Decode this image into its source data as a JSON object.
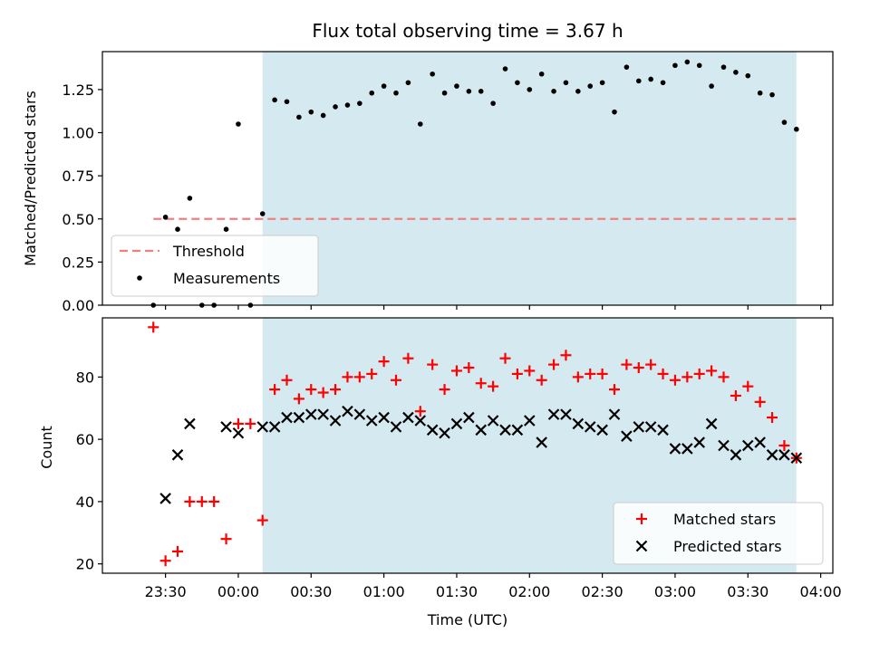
{
  "chart_data": [
    {
      "type": "scatter",
      "title": "Flux total observing time = 3.67 h",
      "xlabel": "",
      "ylabel": "Matched/Predicted stars",
      "ylim": [
        0,
        1.47
      ],
      "xlim": [
        "23:04",
        "04:05"
      ],
      "yticks": [
        "0.00",
        "0.25",
        "0.50",
        "0.75",
        "1.00",
        "1.25"
      ],
      "shaded_span": [
        "00:10",
        "03:50"
      ],
      "shade_color": "#d4eaf0",
      "threshold": {
        "name": "Threshold",
        "value": 0.5,
        "x_start": "23:25",
        "x_end": "03:50",
        "color": "#f08080"
      },
      "series": [
        {
          "name": "Measurements",
          "color": "#000000",
          "x": [
            "23:25",
            "23:30",
            "23:35",
            "23:40",
            "23:45",
            "23:50",
            "23:55",
            "00:00",
            "00:05",
            "00:10",
            "00:15",
            "00:20",
            "00:25",
            "00:30",
            "00:35",
            "00:40",
            "00:45",
            "00:50",
            "00:55",
            "01:00",
            "01:05",
            "01:10",
            "01:15",
            "01:20",
            "01:25",
            "01:30",
            "01:35",
            "01:40",
            "01:45",
            "01:50",
            "01:55",
            "02:00",
            "02:05",
            "02:10",
            "02:15",
            "02:20",
            "02:25",
            "02:30",
            "02:35",
            "02:40",
            "02:45",
            "02:50",
            "02:55",
            "03:00",
            "03:05",
            "03:10",
            "03:15",
            "03:20",
            "03:25",
            "03:30",
            "03:35",
            "03:40",
            "03:45",
            "03:50"
          ],
          "y": [
            0.0,
            0.51,
            0.44,
            0.62,
            0.0,
            0.0,
            0.44,
            1.05,
            0.0,
            0.53,
            1.19,
            1.18,
            1.09,
            1.12,
            1.1,
            1.15,
            1.16,
            1.17,
            1.23,
            1.27,
            1.23,
            1.29,
            1.05,
            1.34,
            1.23,
            1.27,
            1.24,
            1.24,
            1.17,
            1.37,
            1.29,
            1.25,
            1.34,
            1.24,
            1.29,
            1.24,
            1.27,
            1.29,
            1.12,
            1.38,
            1.3,
            1.31,
            1.29,
            1.39,
            1.41,
            1.39,
            1.27,
            1.38,
            1.35,
            1.33,
            1.23,
            1.22,
            1.06,
            1.02
          ]
        }
      ],
      "legend": {
        "placement": "lower-left",
        "entries": [
          "Threshold",
          "Measurements"
        ]
      }
    },
    {
      "type": "scatter",
      "title": "",
      "xlabel": "Time (UTC)",
      "ylabel": "Count",
      "ylim": [
        17,
        99
      ],
      "xlim": [
        "23:04",
        "04:05"
      ],
      "yticks": [
        "20",
        "40",
        "60",
        "80"
      ],
      "xticks": [
        "23:30",
        "00:00",
        "00:30",
        "01:00",
        "01:30",
        "02:00",
        "02:30",
        "03:00",
        "03:30",
        "04:00"
      ],
      "shaded_span": [
        "00:10",
        "03:50"
      ],
      "series": [
        {
          "name": "Matched stars",
          "marker": "+",
          "color": "#ff0000",
          "x": [
            "23:25",
            "23:30",
            "23:35",
            "23:40",
            "23:45",
            "23:50",
            "23:55",
            "00:00",
            "00:05",
            "00:10",
            "00:15",
            "00:20",
            "00:25",
            "00:30",
            "00:35",
            "00:40",
            "00:45",
            "00:50",
            "00:55",
            "01:00",
            "01:05",
            "01:10",
            "01:15",
            "01:20",
            "01:25",
            "01:30",
            "01:35",
            "01:40",
            "01:45",
            "01:50",
            "01:55",
            "02:00",
            "02:05",
            "02:10",
            "02:15",
            "02:20",
            "02:25",
            "02:30",
            "02:35",
            "02:40",
            "02:45",
            "02:50",
            "02:55",
            "03:00",
            "03:05",
            "03:10",
            "03:15",
            "03:20",
            "03:25",
            "03:30",
            "03:35",
            "03:40",
            "03:45",
            "03:50"
          ],
          "y": [
            96,
            21,
            24,
            40,
            40,
            40,
            28,
            65,
            65,
            34,
            76,
            79,
            73,
            76,
            75,
            76,
            80,
            80,
            81,
            85,
            79,
            86,
            69,
            84,
            76,
            82,
            83,
            78,
            77,
            86,
            81,
            82,
            79,
            84,
            87,
            80,
            81,
            81,
            76,
            84,
            83,
            84,
            81,
            79,
            80,
            81,
            82,
            80,
            74,
            77,
            72,
            67,
            58,
            54
          ]
        },
        {
          "name": "Predicted stars",
          "marker": "x",
          "color": "#000000",
          "x": [
            "23:30",
            "23:35",
            "23:40",
            "23:55",
            "00:00",
            "00:10",
            "00:15",
            "00:20",
            "00:25",
            "00:30",
            "00:35",
            "00:40",
            "00:45",
            "00:50",
            "00:55",
            "01:00",
            "01:05",
            "01:10",
            "01:15",
            "01:20",
            "01:25",
            "01:30",
            "01:35",
            "01:40",
            "01:45",
            "01:50",
            "01:55",
            "02:00",
            "02:05",
            "02:10",
            "02:15",
            "02:20",
            "02:25",
            "02:30",
            "02:35",
            "02:40",
            "02:45",
            "02:50",
            "02:55",
            "03:00",
            "03:05",
            "03:10",
            "03:15",
            "03:20",
            "03:25",
            "03:30",
            "03:35",
            "03:40",
            "03:45",
            "03:50"
          ],
          "y": [
            41,
            55,
            65,
            64,
            62,
            64,
            64,
            67,
            67,
            68,
            68,
            66,
            69,
            68,
            66,
            67,
            64,
            67,
            66,
            63,
            62,
            65,
            67,
            63,
            66,
            63,
            63,
            66,
            59,
            68,
            68,
            65,
            64,
            63,
            68,
            61,
            64,
            64,
            63,
            57,
            57,
            59,
            65,
            58,
            55,
            58,
            59,
            55,
            55,
            54
          ]
        }
      ],
      "legend": {
        "placement": "lower-right",
        "entries": [
          "Matched stars",
          "Predicted stars"
        ]
      }
    }
  ]
}
